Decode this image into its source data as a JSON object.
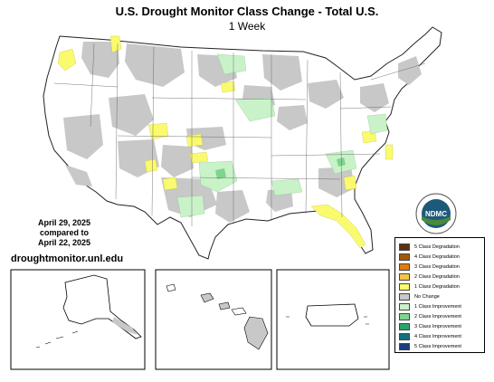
{
  "title": "U.S. Drought Monitor Class Change - Total U.S.",
  "subtitle": "1 Week",
  "date_text": {
    "line1": "April 29, 2025",
    "line2": "compared to",
    "line3": "April 22, 2025"
  },
  "website": "droughtmonitor.unl.edu",
  "logo_text": "NDMC",
  "legend": [
    {
      "label": "5 Class Degradation",
      "color": "#5c3110"
    },
    {
      "label": "4 Class Degradation",
      "color": "#a05a0c"
    },
    {
      "label": "3 Class Degradation",
      "color": "#e07b10"
    },
    {
      "label": "2 Class Degradation",
      "color": "#f6c34a"
    },
    {
      "label": "1 Class Degradation",
      "color": "#fafa6e"
    },
    {
      "label": "No Change",
      "color": "#c8c8c8"
    },
    {
      "label": "1 Class Improvement",
      "color": "#c9f2c9"
    },
    {
      "label": "2 Class Improvement",
      "color": "#7fd48f"
    },
    {
      "label": "3 Class Improvement",
      "color": "#2fa36b"
    },
    {
      "label": "4 Class Improvement",
      "color": "#12717e"
    },
    {
      "label": "5 Class Improvement",
      "color": "#1d3d80"
    }
  ]
}
